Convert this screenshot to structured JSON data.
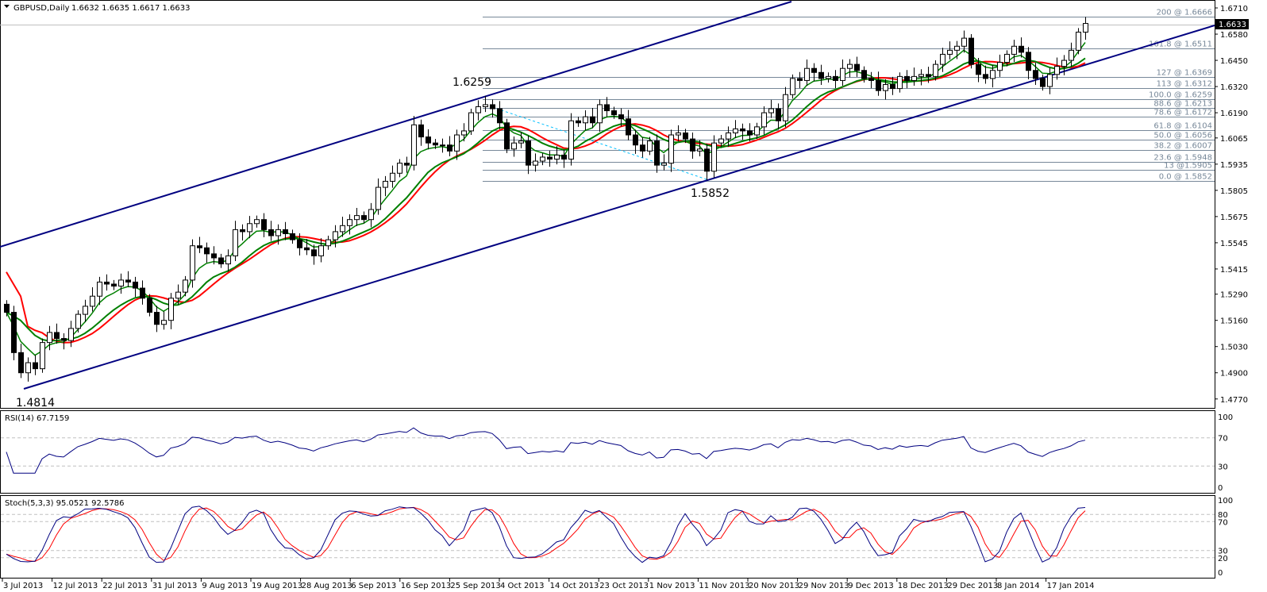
{
  "header": {
    "symbol": "GBPUSD,Daily",
    "ohlc": "1.6632 1.6635 1.6617 1.6633"
  },
  "chart_data": [
    {
      "type": "candlestick",
      "title": "GBPUSD,Daily",
      "ylim": [
        1.477,
        1.671
      ],
      "y_ticks": [
        "1.6710",
        "1.6580",
        "1.6450",
        "1.6320",
        "1.6190",
        "1.6065",
        "1.5935",
        "1.5805",
        "1.5675",
        "1.5545",
        "1.5415",
        "1.5290",
        "1.5160",
        "1.5030",
        "1.4900",
        "1.4770"
      ],
      "y_tick_values": [
        1.671,
        1.658,
        1.645,
        1.632,
        1.619,
        1.6065,
        1.5935,
        1.5805,
        1.5675,
        1.5545,
        1.5415,
        1.529,
        1.516,
        1.503,
        1.49,
        1.477
      ],
      "current_price": "1.6633",
      "x_ticks": [
        "3 Jul 2013",
        "12 Jul 2013",
        "22 Jul 2013",
        "31 Jul 2013",
        "9 Aug 2013",
        "19 Aug 2013",
        "28 Aug 2013",
        "6 Sep 2013",
        "16 Sep 2013",
        "25 Sep 2013",
        "4 Oct 2013",
        "14 Oct 2013",
        "23 Oct 2013",
        "1 Nov 2013",
        "11 Nov 2013",
        "20 Nov 2013",
        "29 Nov 2013",
        "9 Dec 2013",
        "18 Dec 2013",
        "29 Dec 2013",
        "8 Jan 2014",
        "17 Jan 2014"
      ],
      "closes": [
        1.52,
        1.5,
        1.49,
        1.495,
        1.492,
        1.505,
        1.51,
        1.507,
        1.506,
        1.512,
        1.519,
        1.523,
        1.528,
        1.535,
        1.534,
        1.533,
        1.536,
        1.535,
        1.532,
        1.527,
        1.52,
        1.514,
        1.516,
        1.527,
        1.53,
        1.536,
        1.553,
        1.552,
        1.549,
        1.547,
        1.544,
        1.548,
        1.561,
        1.56,
        1.564,
        1.566,
        1.561,
        1.558,
        1.561,
        1.559,
        1.556,
        1.552,
        1.551,
        1.548,
        1.553,
        1.556,
        1.56,
        1.563,
        1.566,
        1.568,
        1.566,
        1.571,
        1.582,
        1.585,
        1.589,
        1.594,
        1.593,
        1.613,
        1.607,
        1.604,
        1.603,
        1.603,
        1.6,
        1.608,
        1.61,
        1.619,
        1.622,
        1.623,
        1.621,
        1.614,
        1.601,
        1.604,
        1.605,
        1.593,
        1.595,
        1.597,
        1.596,
        1.598,
        1.596,
        1.615,
        1.614,
        1.617,
        1.614,
        1.623,
        1.62,
        1.618,
        1.616,
        1.608,
        1.603,
        1.6,
        1.605,
        1.593,
        1.594,
        1.608,
        1.609,
        1.606,
        1.6,
        1.601,
        1.59,
        1.604,
        1.606,
        1.609,
        1.611,
        1.61,
        1.608,
        1.612,
        1.619,
        1.621,
        1.615,
        1.628,
        1.636,
        1.635,
        1.641,
        1.639,
        1.636,
        1.637,
        1.635,
        1.641,
        1.643,
        1.64,
        1.636,
        1.635,
        1.63,
        1.633,
        1.631,
        1.637,
        1.635,
        1.637,
        1.638,
        1.637,
        1.643,
        1.648,
        1.65,
        1.652,
        1.656,
        1.643,
        1.638,
        1.636,
        1.64,
        1.644,
        1.648,
        1.652,
        1.649,
        1.64,
        1.636,
        1.632,
        1.638,
        1.642,
        1.645,
        1.65,
        1.659,
        1.6633
      ],
      "annotations": [
        {
          "text": "1.6259",
          "price": 1.6259
        },
        {
          "text": "1.5852",
          "price": 1.5852
        },
        {
          "text": "1.4814",
          "price": 1.4814
        }
      ],
      "fibonacci": [
        {
          "label": "200 @ 1.6666",
          "price": 1.6666
        },
        {
          "label": "161.8 @ 1.6511",
          "price": 1.6511
        },
        {
          "label": "127 @ 1.6369",
          "price": 1.6369
        },
        {
          "label": "113 @ 1.6312",
          "price": 1.6312
        },
        {
          "label": "100.0 @ 1.6259",
          "price": 1.6259
        },
        {
          "label": "88.6 @ 1.6213",
          "price": 1.6213
        },
        {
          "label": "78.6 @ 1.6172",
          "price": 1.6172
        },
        {
          "label": "61.8 @ 1.6104",
          "price": 1.6104
        },
        {
          "label": "50.0 @ 1.6056",
          "price": 1.6056
        },
        {
          "label": "38.2 @ 1.6007",
          "price": 1.6007
        },
        {
          "label": "23.6 @ 1.5948",
          "price": 1.5948
        },
        {
          "label": "13 @1.5905",
          "price": 1.5905
        },
        {
          "label": "0.0 @ 1.5852",
          "price": 1.5852
        }
      ],
      "colors": {
        "up": "#ffffff",
        "down": "#000000",
        "channel": "#000080",
        "ma_fast": "#008000",
        "ma_slow": "#ff0000",
        "ma_flat": "#ffff00",
        "fib": "#778899",
        "fib_trend": "#00bfff"
      }
    },
    {
      "type": "line",
      "title": "RSI(14) 67.7159",
      "ylim": [
        0,
        100
      ],
      "levels": [
        30,
        70
      ],
      "y_ticks": [
        "100",
        "70",
        "30",
        "0"
      ],
      "colors": {
        "rsi": "#000080"
      }
    },
    {
      "type": "line",
      "title": "Stoch(5,3,3) 95.0521 92.5786",
      "ylim": [
        0,
        100
      ],
      "levels": [
        20,
        30,
        70,
        80
      ],
      "y_ticks": [
        "100",
        "80",
        "70",
        "30",
        "20",
        "0"
      ],
      "colors": {
        "main": "#000080",
        "signal": "#ff0000"
      }
    }
  ]
}
